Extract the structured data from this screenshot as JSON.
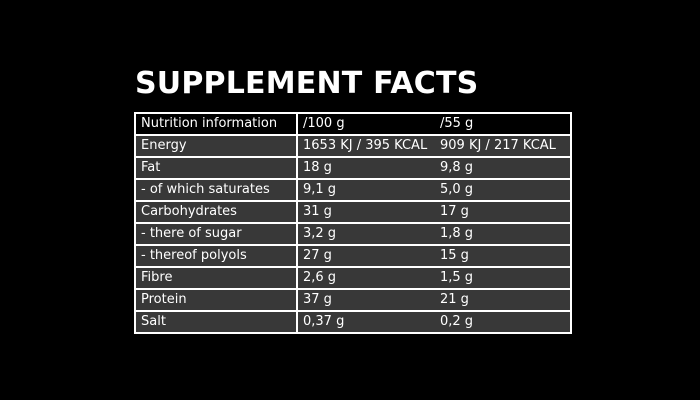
{
  "title": "SUPPLEMENT FACTS",
  "colors": {
    "background": "#000000",
    "text": "#ffffff",
    "shaded_row": "#383838",
    "border": "#ffffff"
  },
  "table": {
    "header": {
      "label": "Nutrition information",
      "per100": "/100 g",
      "perServing": "/55 g"
    },
    "rows": [
      {
        "label": "Energy",
        "per100": "1653 KJ / 395 KCAL",
        "perServing": "909 KJ / 217 KCAL"
      },
      {
        "label": "Fat",
        "per100": "18 g",
        "perServing": "9,8 g"
      },
      {
        "label": "- of which saturates",
        "per100": "9,1 g",
        "perServing": "5,0 g"
      },
      {
        "label": "Carbohydrates",
        "per100": "31 g",
        "perServing": "17 g"
      },
      {
        "label": "- there of sugar",
        "per100": "3,2 g",
        "perServing": "1,8 g"
      },
      {
        "label": "- thereof polyols",
        "per100": "27 g",
        "perServing": "15 g"
      },
      {
        "label": "Fibre",
        "per100": "2,6 g",
        "perServing": "1,5 g"
      },
      {
        "label": "Protein",
        "per100": "37 g",
        "perServing": "21 g"
      },
      {
        "label": "Salt",
        "per100": "0,37 g",
        "perServing": "0,2 g"
      }
    ]
  }
}
